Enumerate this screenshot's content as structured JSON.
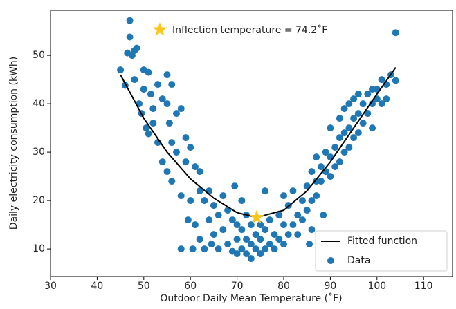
{
  "chart_data": {
    "type": "scatter",
    "xlabel": "Outdoor Daily Mean Temperature (˚F)",
    "ylabel": "Daily electricity consumption (kWh)",
    "annotation": "Inflection temperature = 74.2˚F",
    "xlim": [
      30,
      116.2
    ],
    "ylim": [
      4.3,
      59.3
    ],
    "xticks": [
      30,
      40,
      50,
      60,
      70,
      80,
      90,
      100,
      110
    ],
    "yticks": [
      10,
      20,
      30,
      40,
      50
    ],
    "legend": "lower right",
    "series": [
      {
        "name": "Fitted function",
        "type": "line",
        "color": "#000000",
        "x": [
          45,
          50,
          55,
          60,
          65,
          70,
          74.2,
          80,
          85,
          90,
          95,
          100,
          104
        ],
        "values": [
          46,
          37,
          30,
          24.5,
          20.5,
          17.5,
          16.5,
          18,
          22,
          28,
          35,
          42,
          47.5
        ]
      },
      {
        "name": "Data",
        "type": "scatter",
        "color": "#1f77b4",
        "x": [
          45,
          46,
          46.5,
          47,
          47,
          47.5,
          48,
          48.5,
          48,
          49,
          49.5,
          50,
          50,
          50.5,
          51,
          51,
          51.5,
          52,
          52,
          53,
          53,
          54,
          54,
          55,
          55,
          55,
          55.5,
          56,
          56,
          56,
          57,
          57,
          58,
          58,
          58,
          59,
          59,
          59.5,
          60,
          60,
          60.5,
          61,
          61,
          62,
          62,
          62,
          63,
          63,
          64,
          64,
          64.5,
          65,
          65,
          66,
          66,
          67,
          67,
          68,
          68,
          69,
          69,
          69.5,
          70,
          70,
          70,
          71,
          71,
          71,
          72,
          72,
          72,
          73,
          73,
          73,
          74,
          74,
          75,
          75,
          75,
          76,
          76,
          76,
          77,
          77,
          78,
          78,
          79,
          79,
          80,
          80,
          80,
          81,
          81,
          82,
          82,
          83,
          83,
          84,
          84,
          85,
          85,
          85.5,
          86,
          86,
          86,
          87,
          87,
          87,
          88,
          88,
          88.5,
          89,
          89,
          90,
          90,
          90,
          91,
          91,
          92,
          92,
          92,
          93,
          93,
          93,
          94,
          94,
          94,
          95,
          95,
          95,
          96,
          96,
          96,
          97,
          97,
          98,
          98,
          99,
          99,
          99,
          100,
          100,
          101,
          101,
          102,
          102,
          103,
          104,
          104
        ],
        "values": [
          47,
          43.8,
          50.5,
          57.2,
          53.8,
          50,
          51,
          51.5,
          45,
          40,
          38,
          47,
          43,
          35,
          46.5,
          33.8,
          42,
          39,
          36,
          44,
          32,
          41,
          28,
          46,
          40,
          26,
          36,
          44,
          24,
          32,
          38,
          30,
          39,
          21,
          10,
          33,
          28,
          16,
          31,
          20,
          10,
          27,
          15,
          26,
          22,
          12,
          20,
          10,
          22,
          16,
          11,
          19,
          13,
          17,
          10,
          21,
          14,
          18,
          11,
          16,
          9.5,
          23,
          15,
          12,
          9,
          20,
          14,
          10,
          17,
          12,
          9,
          15,
          11,
          8,
          13,
          10,
          15,
          12,
          9,
          22,
          14,
          10,
          16,
          11,
          13,
          10,
          17,
          12,
          21,
          15,
          11,
          19,
          13,
          22,
          15,
          17,
          13,
          20,
          16,
          23,
          18,
          11,
          26,
          20,
          14,
          29,
          24,
          21,
          27,
          24,
          17,
          30,
          26,
          35,
          29,
          25,
          31,
          27,
          37,
          33,
          28,
          39,
          34,
          30,
          40,
          35,
          31,
          41,
          37,
          33,
          42,
          38,
          34,
          40,
          36,
          42,
          38,
          43,
          40,
          35,
          43,
          41,
          40,
          45,
          44,
          41,
          46,
          54.7,
          44.8
        ]
      }
    ],
    "inflection": {
      "x": 74.2,
      "y": 16.5,
      "color": "#ffc61a"
    }
  }
}
